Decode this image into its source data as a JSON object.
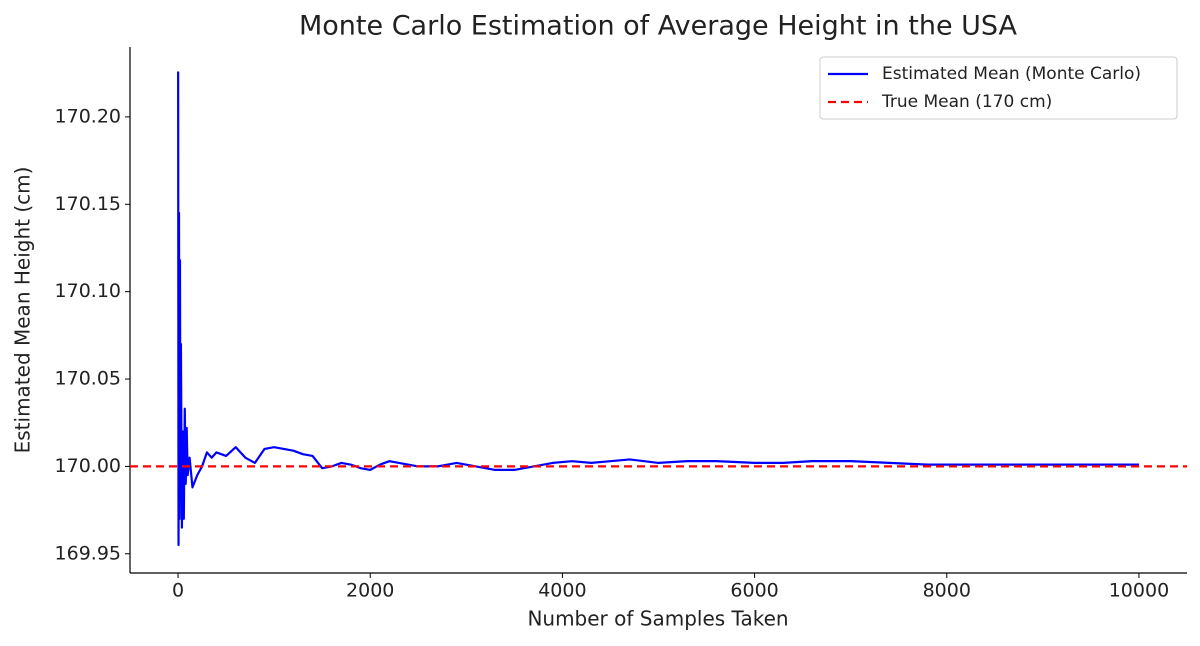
{
  "chart_data": {
    "type": "line",
    "title": "Monte Carlo Estimation of Average Height in the USA",
    "xlabel": "Number of Samples Taken",
    "ylabel": "Estimated Mean Height (cm)",
    "xlim": [
      -500,
      10500
    ],
    "ylim": [
      169.939,
      170.24
    ],
    "xticks": [
      0,
      2000,
      4000,
      6000,
      8000,
      10000
    ],
    "yticks": [
      {
        "value": 169.95,
        "label": "169.95"
      },
      {
        "value": 170.0,
        "label": "170.00"
      },
      {
        "value": 170.05,
        "label": "170.05"
      },
      {
        "value": 170.1,
        "label": "170.10"
      },
      {
        "value": 170.15,
        "label": "170.15"
      },
      {
        "value": 170.2,
        "label": "170.20"
      }
    ],
    "grid": false,
    "legend": "upper right",
    "series": [
      {
        "name": "Estimated Mean (Monte Carlo)",
        "color": "#0000ff",
        "x": [
          1,
          5,
          10,
          15,
          20,
          25,
          30,
          40,
          50,
          60,
          70,
          80,
          90,
          100,
          120,
          150,
          200,
          250,
          300,
          350,
          400,
          500,
          600,
          700,
          800,
          900,
          1000,
          1100,
          1200,
          1300,
          1400,
          1500,
          1600,
          1700,
          1800,
          1900,
          2000,
          2100,
          2200,
          2300,
          2500,
          2700,
          2900,
          3100,
          3300,
          3500,
          3700,
          3900,
          4100,
          4300,
          4500,
          4700,
          5000,
          5300,
          5600,
          6000,
          6300,
          6600,
          7000,
          7400,
          7800,
          8200,
          8600,
          9000,
          9400,
          10000
        ],
        "values": [
          170.226,
          169.955,
          170.145,
          169.97,
          170.118,
          169.98,
          170.07,
          169.965,
          170.02,
          169.97,
          170.033,
          169.99,
          170.022,
          169.995,
          170.005,
          169.988,
          169.995,
          170.0,
          170.008,
          170.005,
          170.008,
          170.006,
          170.011,
          170.005,
          170.002,
          170.01,
          170.011,
          170.01,
          170.009,
          170.007,
          170.006,
          169.999,
          170.0,
          170.002,
          170.001,
          169.999,
          169.998,
          170.001,
          170.003,
          170.002,
          170.0,
          170.0,
          170.002,
          170.0,
          169.998,
          169.998,
          170.0,
          170.002,
          170.003,
          170.002,
          170.003,
          170.004,
          170.002,
          170.003,
          170.003,
          170.002,
          170.002,
          170.003,
          170.003,
          170.002,
          170.001,
          170.001,
          170.001,
          170.001,
          170.001,
          170.001
        ]
      }
    ],
    "hlines": [
      {
        "name": "True Mean (170 cm)",
        "color": "#ff0000",
        "value": 170.0
      }
    ]
  }
}
